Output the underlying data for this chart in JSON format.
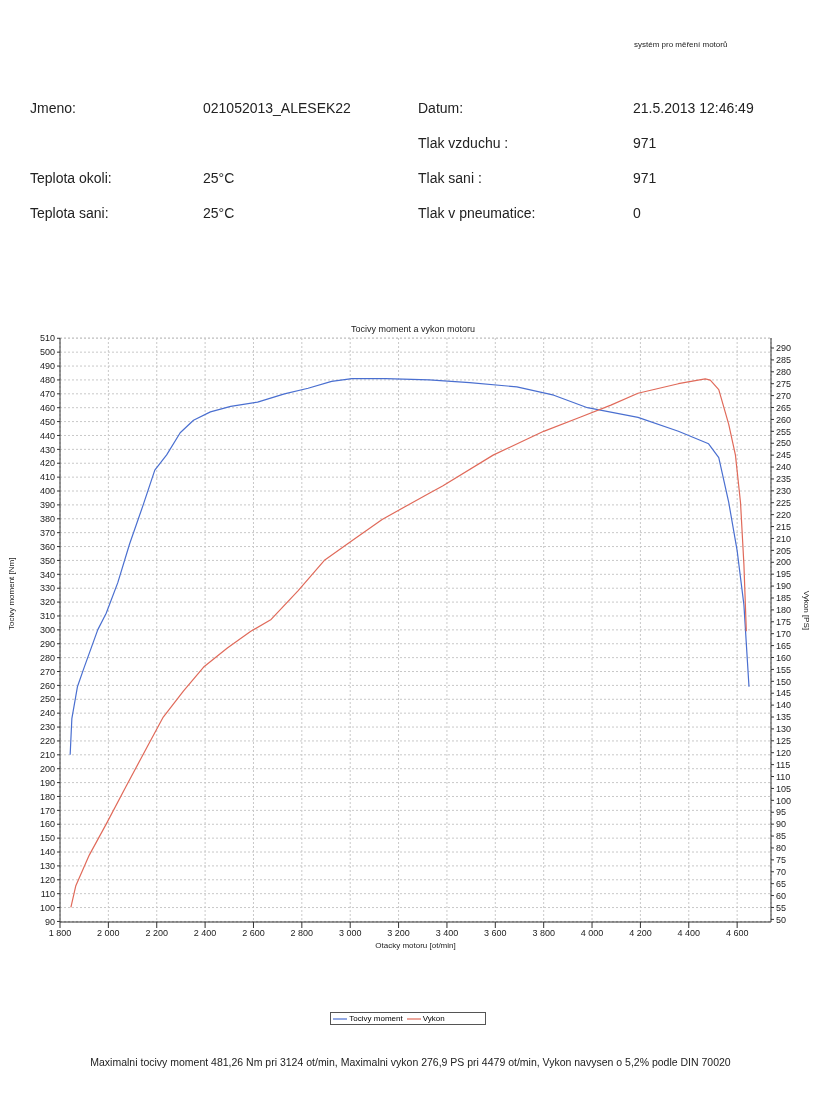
{
  "chart_data": {
    "type": "line",
    "title": "Tocivy moment a vykon motoru",
    "xlabel": "Otacky motoru [ot/min]",
    "ylabel": "Tocivy moment [Nm]",
    "y2label": "Vykon [PS]",
    "annotations": [
      "systém pro měření motorů",
      "Jmeno:",
      "021052013_ALESEK22",
      "Datum:",
      "21.5.2013 12:46:49",
      "Tlak vzduchu :",
      "971",
      "Teplota okoli:",
      "25°C",
      "Tlak sani :",
      "971",
      "Teplota sani:",
      "25°C",
      "Tlak v pneumatice:",
      "0",
      "Maximalni tocivy moment 481,26 Nm pri 3124 ot/min,  Maximalni vykon 276,9 PS pri 4479 ot/min,  Vykon navysen o 5,2% podle DIN 70020"
    ],
    "series": [
      {
        "name": "Tocivy moment",
        "color": "#4a6fd0",
        "x": [
          1842,
          1849,
          1872,
          1900,
          1956,
          1991,
          2039,
          2088,
          2144,
          2192,
          2241,
          2297,
          2352,
          2422,
          2506,
          2617,
          2728,
          2826,
          2923,
          3007,
          3146,
          3327,
          3494,
          3689,
          3842,
          3981,
          4190,
          4357,
          4482,
          4524,
          4565,
          4600,
          4628,
          4649
        ],
        "values": [
          210,
          236,
          259,
          273,
          300,
          312,
          334,
          362,
          390,
          415,
          426,
          442,
          451,
          457,
          461,
          464,
          470,
          474,
          479,
          481,
          481,
          480,
          478,
          475,
          469,
          460,
          453,
          443,
          434,
          424,
          392,
          357,
          318,
          259
        ]
      },
      {
        "name": "Vykon",
        "color": "#e06a5a",
        "axis": "y2",
        "x": [
          1845,
          1865,
          1921,
          1991,
          2074,
          2158,
          2227,
          2311,
          2394,
          2492,
          2589,
          2673,
          2784,
          2895,
          3007,
          3132,
          3327,
          3382,
          3591,
          3800,
          3953,
          4078,
          4190,
          4357,
          4468,
          4489,
          4524,
          4565,
          4593,
          4614,
          4628,
          4638
        ],
        "values": [
          55,
          64,
          77,
          90,
          106,
          122,
          135,
          146,
          156,
          164,
          171,
          176,
          188,
          201,
          209,
          218,
          229,
          232,
          245,
          255,
          261,
          266,
          271,
          275,
          277,
          276.5,
          272.5,
          258,
          245,
          225,
          199,
          171
        ]
      }
    ],
    "xlim": [
      1800,
      4740
    ],
    "xticks": [
      {
        "value": 1800,
        "label": "1 800"
      },
      {
        "value": 2000,
        "label": "2 000"
      },
      {
        "value": 2200,
        "label": "2 200"
      },
      {
        "value": 2400,
        "label": "2 400"
      },
      {
        "value": 2600,
        "label": "2 600"
      },
      {
        "value": 2800,
        "label": "2 800"
      },
      {
        "value": 3000,
        "label": "3 000"
      },
      {
        "value": 3200,
        "label": "3 200"
      },
      {
        "value": 3400,
        "label": "3 400"
      },
      {
        "value": 3600,
        "label": "3 600"
      },
      {
        "value": 3800,
        "label": "3 800"
      },
      {
        "value": 4000,
        "label": "4 000"
      },
      {
        "value": 4200,
        "label": "4 200"
      },
      {
        "value": 4400,
        "label": "4 400"
      },
      {
        "value": 4600,
        "label": "4 600"
      }
    ],
    "ylim": [
      89.6,
      510.2
    ],
    "yticks": [
      90,
      100,
      110,
      120,
      130,
      140,
      150,
      160,
      170,
      180,
      190,
      200,
      210,
      220,
      230,
      240,
      250,
      260,
      270,
      280,
      290,
      300,
      310,
      320,
      330,
      340,
      350,
      360,
      370,
      380,
      390,
      400,
      410,
      420,
      430,
      440,
      450,
      460,
      470,
      480,
      490,
      500,
      510
    ],
    "y2lim": [
      48.9,
      294.2
    ],
    "y2ticks": [
      50,
      55,
      60,
      65,
      70,
      75,
      80,
      85,
      90,
      95,
      100,
      105,
      110,
      115,
      120,
      125,
      130,
      135,
      140,
      145,
      150,
      155,
      160,
      165,
      170,
      175,
      180,
      185,
      190,
      195,
      200,
      205,
      210,
      215,
      220,
      225,
      230,
      235,
      240,
      245,
      250,
      255,
      260,
      265,
      270,
      275,
      280,
      285,
      290
    ],
    "grid": true,
    "legend": "bottom",
    "line_style": "solid"
  }
}
